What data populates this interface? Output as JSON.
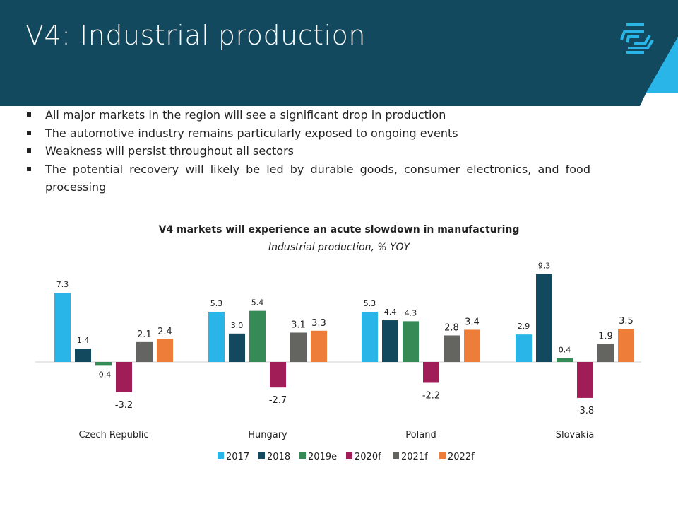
{
  "header": {
    "title": "V4: Industrial production",
    "colors": {
      "band": "#13495e",
      "accent": "#29b5e8"
    },
    "logo_icon": "hexagon-stripes-logo"
  },
  "bullets": [
    "All major markets in the region will see a significant drop in production",
    "The automotive industry remains particularly exposed to ongoing events",
    "Weakness will persist throughout all sectors",
    "The potential recovery will likely be led by durable goods, consumer electronics, and food processing"
  ],
  "chart_data": {
    "type": "bar",
    "title": "V4 markets will experience an acute slowdown in manufacturing",
    "subtitle": "Industrial production, % YOY",
    "categories": [
      "Czech Republic",
      "Hungary",
      "Poland",
      "Slovakia"
    ],
    "series": [
      {
        "name": "2017",
        "color": "#29b5e8",
        "values": [
          7.3,
          5.3,
          5.3,
          2.9
        ],
        "labels": [
          "7.3",
          "5.3",
          "5.3",
          "2.9"
        ]
      },
      {
        "name": "2018",
        "color": "#13495e",
        "values": [
          1.4,
          3.0,
          4.4,
          9.3
        ],
        "labels": [
          "1.4",
          "3.0",
          "4.4",
          "9.3"
        ]
      },
      {
        "name": "2019e",
        "color": "#358a56",
        "values": [
          -0.4,
          5.4,
          4.3,
          0.4
        ],
        "labels": [
          "-0.4",
          "5.4",
          "4.3",
          "0.4"
        ]
      },
      {
        "name": "2020f",
        "color": "#a01d58",
        "values": [
          -3.2,
          -2.7,
          -2.2,
          -3.8
        ],
        "labels": [
          "-3.2",
          "-2.7",
          "-2.2",
          "-3.8"
        ]
      },
      {
        "name": "2021f",
        "color": "#646461",
        "values": [
          2.1,
          3.1,
          2.8,
          1.9
        ],
        "labels": [
          "2.1",
          "3.1",
          "2.8",
          "1.9"
        ]
      },
      {
        "name": "2022f",
        "color": "#ee7d3a",
        "values": [
          2.4,
          3.3,
          3.4,
          3.5
        ],
        "labels": [
          "2.4",
          "3.3",
          "3.4",
          "3.5"
        ]
      }
    ],
    "ylim": [
      -4,
      10
    ],
    "grid": false,
    "legend": "bottom"
  }
}
